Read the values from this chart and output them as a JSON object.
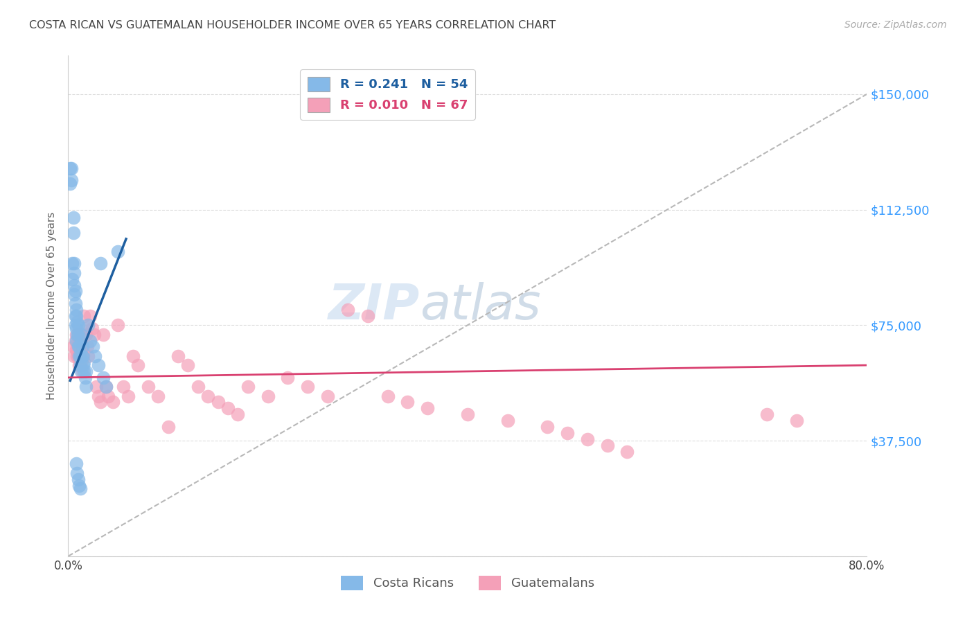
{
  "title": "COSTA RICAN VS GUATEMALAN HOUSEHOLDER INCOME OVER 65 YEARS CORRELATION CHART",
  "source": "Source: ZipAtlas.com",
  "ylabel": "Householder Income Over 65 years",
  "xlim": [
    0.0,
    0.8
  ],
  "ylim": [
    0,
    162500
  ],
  "yticks": [
    0,
    37500,
    75000,
    112500,
    150000
  ],
  "ytick_labels": [
    "",
    "$37,500",
    "$75,000",
    "$112,500",
    "$150,000"
  ],
  "xtick_positions": [
    0.0,
    0.1,
    0.2,
    0.3,
    0.4,
    0.5,
    0.6,
    0.7,
    0.8
  ],
  "xtick_labels": [
    "0.0%",
    "",
    "",
    "",
    "",
    "",
    "",
    "",
    "80.0%"
  ],
  "bg_color": "#ffffff",
  "grid_color": "#dddddd",
  "blue_scatter_color": "#85b9e8",
  "pink_scatter_color": "#f4a0b8",
  "blue_line_color": "#1e5fa0",
  "pink_line_color": "#d94070",
  "dash_line_color": "#b8b8b8",
  "right_axis_color": "#3399ff",
  "costa_rican_R": 0.241,
  "costa_rican_N": 54,
  "guatemalan_R": 0.01,
  "guatemalan_N": 67,
  "costa_ricans_x": [
    0.002,
    0.002,
    0.003,
    0.003,
    0.004,
    0.004,
    0.005,
    0.005,
    0.006,
    0.006,
    0.006,
    0.006,
    0.007,
    0.007,
    0.007,
    0.007,
    0.008,
    0.008,
    0.008,
    0.008,
    0.009,
    0.009,
    0.01,
    0.01,
    0.01,
    0.011,
    0.011,
    0.012,
    0.012,
    0.013,
    0.013,
    0.014,
    0.014,
    0.015,
    0.016,
    0.017,
    0.018,
    0.02,
    0.022,
    0.025,
    0.027,
    0.03,
    0.032,
    0.035,
    0.038,
    0.008,
    0.009,
    0.01,
    0.011,
    0.012,
    0.014,
    0.016,
    0.018,
    0.05
  ],
  "costa_ricans_y": [
    126000,
    121000,
    126000,
    122000,
    95000,
    90000,
    110000,
    105000,
    92000,
    88000,
    85000,
    95000,
    82000,
    86000,
    78000,
    75000,
    80000,
    78000,
    74000,
    70000,
    76000,
    72000,
    75000,
    72000,
    68000,
    68000,
    65000,
    65000,
    62000,
    60000,
    72000,
    68000,
    65000,
    62000,
    60000,
    58000,
    55000,
    75000,
    70000,
    68000,
    65000,
    62000,
    95000,
    58000,
    55000,
    30000,
    27000,
    25000,
    23000,
    22000,
    65000,
    63000,
    60000,
    99000
  ],
  "guatemalans_x": [
    0.005,
    0.006,
    0.007,
    0.008,
    0.008,
    0.009,
    0.009,
    0.01,
    0.01,
    0.011,
    0.011,
    0.012,
    0.012,
    0.013,
    0.013,
    0.014,
    0.014,
    0.015,
    0.016,
    0.017,
    0.018,
    0.019,
    0.02,
    0.022,
    0.024,
    0.026,
    0.028,
    0.03,
    0.032,
    0.035,
    0.038,
    0.04,
    0.045,
    0.05,
    0.055,
    0.06,
    0.065,
    0.07,
    0.08,
    0.09,
    0.1,
    0.11,
    0.12,
    0.13,
    0.14,
    0.15,
    0.16,
    0.17,
    0.18,
    0.2,
    0.22,
    0.24,
    0.26,
    0.28,
    0.3,
    0.32,
    0.34,
    0.36,
    0.4,
    0.44,
    0.48,
    0.5,
    0.52,
    0.54,
    0.56,
    0.7,
    0.73
  ],
  "guatemalans_y": [
    68000,
    65000,
    70000,
    67000,
    72000,
    65000,
    68000,
    72000,
    65000,
    62000,
    68000,
    65000,
    70000,
    65000,
    62000,
    60000,
    68000,
    65000,
    78000,
    74000,
    72000,
    68000,
    65000,
    78000,
    74000,
    72000,
    55000,
    52000,
    50000,
    72000,
    55000,
    52000,
    50000,
    75000,
    55000,
    52000,
    65000,
    62000,
    55000,
    52000,
    42000,
    65000,
    62000,
    55000,
    52000,
    50000,
    48000,
    46000,
    55000,
    52000,
    58000,
    55000,
    52000,
    80000,
    78000,
    52000,
    50000,
    48000,
    46000,
    44000,
    42000,
    40000,
    38000,
    36000,
    34000,
    46000,
    44000
  ],
  "blue_trend_x": [
    0.002,
    0.058
  ],
  "blue_trend_y": [
    57000,
    103000
  ],
  "pink_trend_x": [
    0.0,
    0.8
  ],
  "pink_trend_y": [
    58000,
    62000
  ],
  "dash_trend_x": [
    0.0,
    0.8
  ],
  "dash_trend_y": [
    0,
    150000
  ]
}
